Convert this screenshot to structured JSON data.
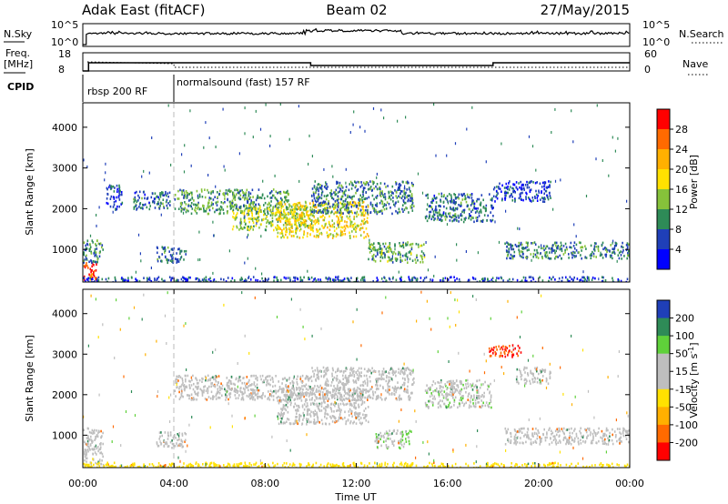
{
  "header": {
    "radar": "Adak East (fitACF)",
    "beam": "Beam 02",
    "date": "27/May/2015"
  },
  "chart_data": [
    {
      "type": "line",
      "name": "noise-panel",
      "left_label": "N.Sky",
      "right_label": "N.Search",
      "left_ticks": [
        "10^5",
        "10^0"
      ],
      "right_ticks": [
        "10^5",
        "10^0"
      ]
    },
    {
      "type": "line",
      "name": "frequency-nave-panel",
      "left_label_top": "Freq.",
      "left_label_bottom": "[MHz]",
      "right_label": "Nave",
      "left_ticks": [
        18,
        8
      ],
      "right_ticks": [
        60,
        0
      ],
      "freq_segments": [
        {
          "x0": "00:00",
          "x1": "00:15",
          "freq": 8
        },
        {
          "x0": "00:15",
          "x1": "10:00",
          "freq": 12.5
        },
        {
          "x0": "10:00",
          "x1": "18:00",
          "freq": 11
        },
        {
          "x0": "18:00",
          "x1": "24:00",
          "freq": 12.5
        }
      ]
    },
    {
      "type": "table",
      "name": "cpid-strip",
      "label": "CPID",
      "segments": [
        {
          "start": "00:00",
          "end": "04:00",
          "label": "rbsp 200 RF"
        },
        {
          "start": "04:00",
          "end": "24:00",
          "label": "normalsound (fast) 157 RF"
        }
      ]
    },
    {
      "type": "heatmap",
      "name": "power-panel",
      "ylabel": "Slant Range [km]",
      "ylim": [
        200,
        4600
      ],
      "y_ticks": [
        1000,
        2000,
        3000,
        4000
      ],
      "colorbar_label": "Power [dB]",
      "colorbar_ticks": [
        28,
        24,
        20,
        16,
        12,
        8,
        4
      ],
      "colorbar_colors": [
        "#ff0000",
        "#ff6a00",
        "#ffb000",
        "#ffe100",
        "#86c23a",
        "#2e8b57",
        "#1f3fb8",
        "#0000ff"
      ],
      "echo_regions": [
        {
          "t0": 0.0,
          "t1": 0.6,
          "r0": 250,
          "r1": 700,
          "level": 28
        },
        {
          "t0": 0.0,
          "t1": 0.9,
          "r0": 700,
          "r1": 1250,
          "level": 10
        },
        {
          "t0": 1.0,
          "t1": 1.7,
          "r0": 2000,
          "r1": 2600,
          "level": 6
        },
        {
          "t0": 2.2,
          "t1": 3.8,
          "r0": 2000,
          "r1": 2450,
          "level": 8
        },
        {
          "t0": 3.2,
          "t1": 4.5,
          "r0": 700,
          "r1": 1100,
          "level": 9
        },
        {
          "t0": 4.0,
          "t1": 9.0,
          "r0": 1900,
          "r1": 2500,
          "level": 11
        },
        {
          "t0": 6.5,
          "t1": 10.0,
          "r0": 1500,
          "r1": 2100,
          "level": 15
        },
        {
          "t0": 8.5,
          "t1": 12.5,
          "r0": 1300,
          "r1": 2200,
          "level": 18
        },
        {
          "t0": 10.0,
          "t1": 14.5,
          "r0": 1900,
          "r1": 2700,
          "level": 9
        },
        {
          "t0": 12.5,
          "t1": 15.0,
          "r0": 700,
          "r1": 1200,
          "level": 12
        },
        {
          "t0": 15.0,
          "t1": 18.0,
          "r0": 1700,
          "r1": 2400,
          "level": 8
        },
        {
          "t0": 18.0,
          "t1": 20.5,
          "r0": 2200,
          "r1": 2700,
          "level": 5
        },
        {
          "t0": 18.5,
          "t1": 24.0,
          "r0": 800,
          "r1": 1200,
          "level": 9
        },
        {
          "t0": 0.0,
          "t1": 24.0,
          "r0": 200,
          "r1": 350,
          "level": 6
        }
      ]
    },
    {
      "type": "heatmap",
      "name": "velocity-panel",
      "xlabel": "Time UT",
      "ylabel": "Slant Range [km]",
      "ylim": [
        200,
        4600
      ],
      "y_ticks": [
        1000,
        2000,
        3000,
        4000
      ],
      "x_ticks": [
        "00:00",
        "04:00",
        "08:00",
        "12:00",
        "16:00",
        "20:00",
        "00:00"
      ],
      "colorbar_label": "Velocity [m s",
      "colorbar_label_sup": "-1",
      "colorbar_label_end": "]",
      "colorbar_ticks": [
        200,
        100,
        50,
        15,
        -15,
        -50,
        -100,
        -200
      ],
      "colorbar_colors": [
        "#1f3fb8",
        "#2e8b57",
        "#5fd13a",
        "#bebebe",
        "#bebebe",
        "#ffe100",
        "#ffb000",
        "#ff6a00",
        "#ff0000"
      ],
      "echo_regions": [
        {
          "t0": 0.0,
          "t1": 0.9,
          "r0": 250,
          "r1": 1200,
          "vel": 0
        },
        {
          "t0": 3.2,
          "t1": 4.5,
          "r0": 700,
          "r1": 1100,
          "vel": 0
        },
        {
          "t0": 4.0,
          "t1": 10.0,
          "r0": 1900,
          "r1": 2500,
          "vel": 0
        },
        {
          "t0": 8.5,
          "t1": 12.5,
          "r0": 1300,
          "r1": 2200,
          "vel": 0
        },
        {
          "t0": 10.0,
          "t1": 14.5,
          "r0": 1900,
          "r1": 2700,
          "vel": 0
        },
        {
          "t0": 12.8,
          "t1": 14.4,
          "r0": 700,
          "r1": 1150,
          "vel": 45
        },
        {
          "t0": 15.0,
          "t1": 17.9,
          "r0": 1700,
          "r1": 2400,
          "vel": 40
        },
        {
          "t0": 17.8,
          "t1": 19.2,
          "r0": 2950,
          "r1": 3250,
          "vel": -200
        },
        {
          "t0": 19.0,
          "t1": 20.5,
          "r0": 2300,
          "r1": 2700,
          "vel": 0
        },
        {
          "t0": 18.5,
          "t1": 24.0,
          "r0": 800,
          "r1": 1200,
          "vel": 0
        },
        {
          "t0": 0.0,
          "t1": 24.0,
          "r0": 200,
          "r1": 350,
          "vel": -30
        }
      ]
    }
  ]
}
